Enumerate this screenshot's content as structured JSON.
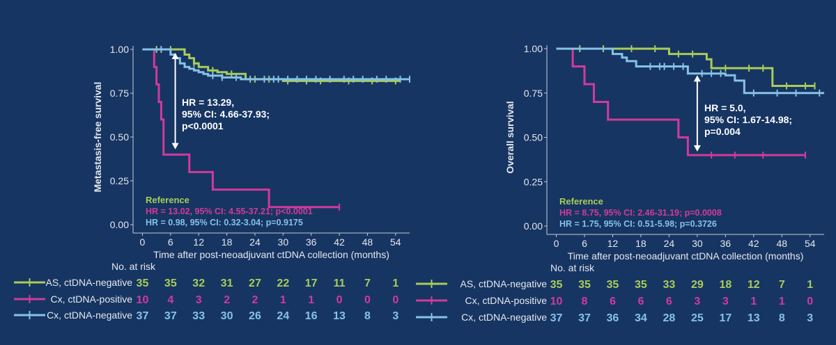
{
  "colors": {
    "background": "#163562",
    "axis": "#c8ccd6",
    "text": "#ffffff",
    "green": "#a9cc5a",
    "magenta": "#d23a9c",
    "blue": "#86c2e6"
  },
  "chart_data": [
    {
      "type": "line",
      "ylabel": "Metastasis-free survival",
      "xlabel": "Time after post-neoadjuvant ctDNA collection (months)",
      "xticks": [
        0,
        6,
        12,
        18,
        24,
        30,
        36,
        42,
        48,
        54
      ],
      "xlim": [
        -2,
        57
      ],
      "yticks": [
        "0.00",
        "0.25",
        "0.50",
        "0.75",
        "1.00"
      ],
      "ylim": [
        0,
        1
      ],
      "hr_box": {
        "lines": [
          "HR = 13.29,",
          "95% CI: 4.66-37.93;",
          "p<0.0001"
        ],
        "arrow_x": 7,
        "arrow_y_top": 0.98,
        "arrow_y_bottom": 0.43
      },
      "reference": {
        "title": "Reference",
        "lines": [
          {
            "text": "HR = 13.02, 95% CI: 4.55-37.21; p<0.0001",
            "color_key": "magenta"
          },
          {
            "text": "HR = 0.98, 95% CI: 0.32-3.04; p=0.9175",
            "color_key": "blue"
          }
        ]
      },
      "series": [
        {
          "name": "AS, ctDNA-negative",
          "color_key": "green",
          "x": [
            0,
            9,
            10,
            11,
            12,
            14,
            16,
            18,
            22,
            30,
            55
          ],
          "y": [
            1.0,
            0.97,
            0.95,
            0.92,
            0.9,
            0.88,
            0.87,
            0.86,
            0.83,
            0.82,
            0.82
          ],
          "censor": [
            3,
            6,
            11,
            15,
            19,
            24,
            27,
            31,
            35,
            38,
            44,
            49,
            54
          ]
        },
        {
          "name": "Cx, ctDNA-positive",
          "color_key": "magenta",
          "x": [
            0,
            2.5,
            3,
            3.5,
            4,
            4.5,
            10,
            15,
            27,
            42
          ],
          "y": [
            1.0,
            0.9,
            0.8,
            0.7,
            0.6,
            0.4,
            0.3,
            0.2,
            0.1,
            0.1
          ],
          "censor": [
            42
          ]
        },
        {
          "name": "Cx, ctDNA-negative",
          "color_key": "blue",
          "x": [
            0,
            6,
            7,
            8,
            9,
            10,
            11,
            12,
            13,
            14,
            17,
            21,
            24,
            57
          ],
          "y": [
            1.0,
            0.97,
            0.95,
            0.92,
            0.9,
            0.89,
            0.88,
            0.87,
            0.86,
            0.85,
            0.84,
            0.83,
            0.83,
            0.83
          ],
          "censor": [
            4,
            15,
            17,
            20,
            23,
            26,
            28,
            29,
            31,
            33,
            35,
            37,
            40,
            43,
            45,
            47,
            50,
            52,
            55,
            57
          ]
        }
      ],
      "risk_table": {
        "header": "No. at risk",
        "rows": [
          {
            "label": "AS, ctDNA-negative",
            "color_key": "green",
            "values": [
              "35",
              "35",
              "32",
              "31",
              "27",
              "22",
              "17",
              "11",
              "7",
              "1"
            ]
          },
          {
            "label": "Cx, ctDNA-positive",
            "color_key": "magenta",
            "values": [
              "10",
              "4",
              "3",
              "2",
              "2",
              "1",
              "1",
              "0",
              "0",
              "0"
            ]
          },
          {
            "label": "Cx, ctDNA-negative",
            "color_key": "blue",
            "values": [
              "37",
              "37",
              "33",
              "30",
              "26",
              "24",
              "16",
              "13",
              "8",
              "3"
            ]
          }
        ]
      }
    },
    {
      "type": "line",
      "ylabel": "Overall survival",
      "xlabel": "Time after post-neoadjuvant ctDNA collection (months)",
      "xticks": [
        0,
        6,
        12,
        18,
        24,
        30,
        36,
        42,
        48,
        54
      ],
      "xlim": [
        -2,
        57
      ],
      "yticks": [
        "0.00",
        "0.25",
        "0.50",
        "0.75",
        "1.00"
      ],
      "ylim": [
        0,
        1
      ],
      "hr_box": {
        "lines": [
          "HR = 5.0,",
          "95% CI: 1.67-14.98;",
          "p=0.004"
        ],
        "arrow_x": 30,
        "arrow_y_top": 0.85,
        "arrow_y_bottom": 0.42
      },
      "reference": {
        "title": "Reference",
        "lines": [
          {
            "text": "HR = 8.75, 95% CI: 2.46-31.19; p=0.0008",
            "color_key": "magenta"
          },
          {
            "text": "HR = 1.75, 95% CI: 0.51-5.98; p=0.3726",
            "color_key": "blue"
          }
        ]
      },
      "series": [
        {
          "name": "AS, ctDNA-negative",
          "color_key": "green",
          "x": [
            0,
            24,
            32,
            33,
            46,
            55
          ],
          "y": [
            1.0,
            0.97,
            0.94,
            0.89,
            0.79,
            0.79
          ],
          "censor": [
            5,
            10,
            16,
            21,
            26,
            29,
            36,
            41,
            44,
            49,
            53,
            55
          ]
        },
        {
          "name": "Cx, ctDNA-positive",
          "color_key": "magenta",
          "x": [
            0,
            3.5,
            6,
            8,
            11,
            26,
            28,
            53
          ],
          "y": [
            1.0,
            0.9,
            0.8,
            0.7,
            0.6,
            0.5,
            0.4,
            0.4
          ],
          "censor": [
            33,
            38,
            44,
            53
          ]
        },
        {
          "name": "Cx, ctDNA-negative",
          "color_key": "blue",
          "x": [
            0,
            12,
            14,
            15,
            17,
            28,
            36,
            38,
            40,
            57
          ],
          "y": [
            1.0,
            0.97,
            0.95,
            0.93,
            0.9,
            0.86,
            0.85,
            0.82,
            0.75,
            0.75
          ],
          "censor": [
            20,
            22,
            23,
            25,
            27,
            31,
            33,
            35,
            42,
            47,
            51,
            56
          ]
        }
      ],
      "risk_table": {
        "header": "No. at risk",
        "rows": [
          {
            "label": "AS, ctDNA-negative",
            "color_key": "green",
            "values": [
              "35",
              "35",
              "35",
              "35",
              "33",
              "29",
              "18",
              "12",
              "7",
              "1"
            ]
          },
          {
            "label": "Cx, ctDNA-positive",
            "color_key": "magenta",
            "values": [
              "10",
              "8",
              "6",
              "6",
              "6",
              "3",
              "3",
              "1",
              "1",
              "0"
            ]
          },
          {
            "label": "Cx, ctDNA-negative",
            "color_key": "blue",
            "values": [
              "37",
              "37",
              "36",
              "34",
              "28",
              "25",
              "17",
              "13",
              "8",
              "3"
            ]
          }
        ]
      }
    }
  ]
}
